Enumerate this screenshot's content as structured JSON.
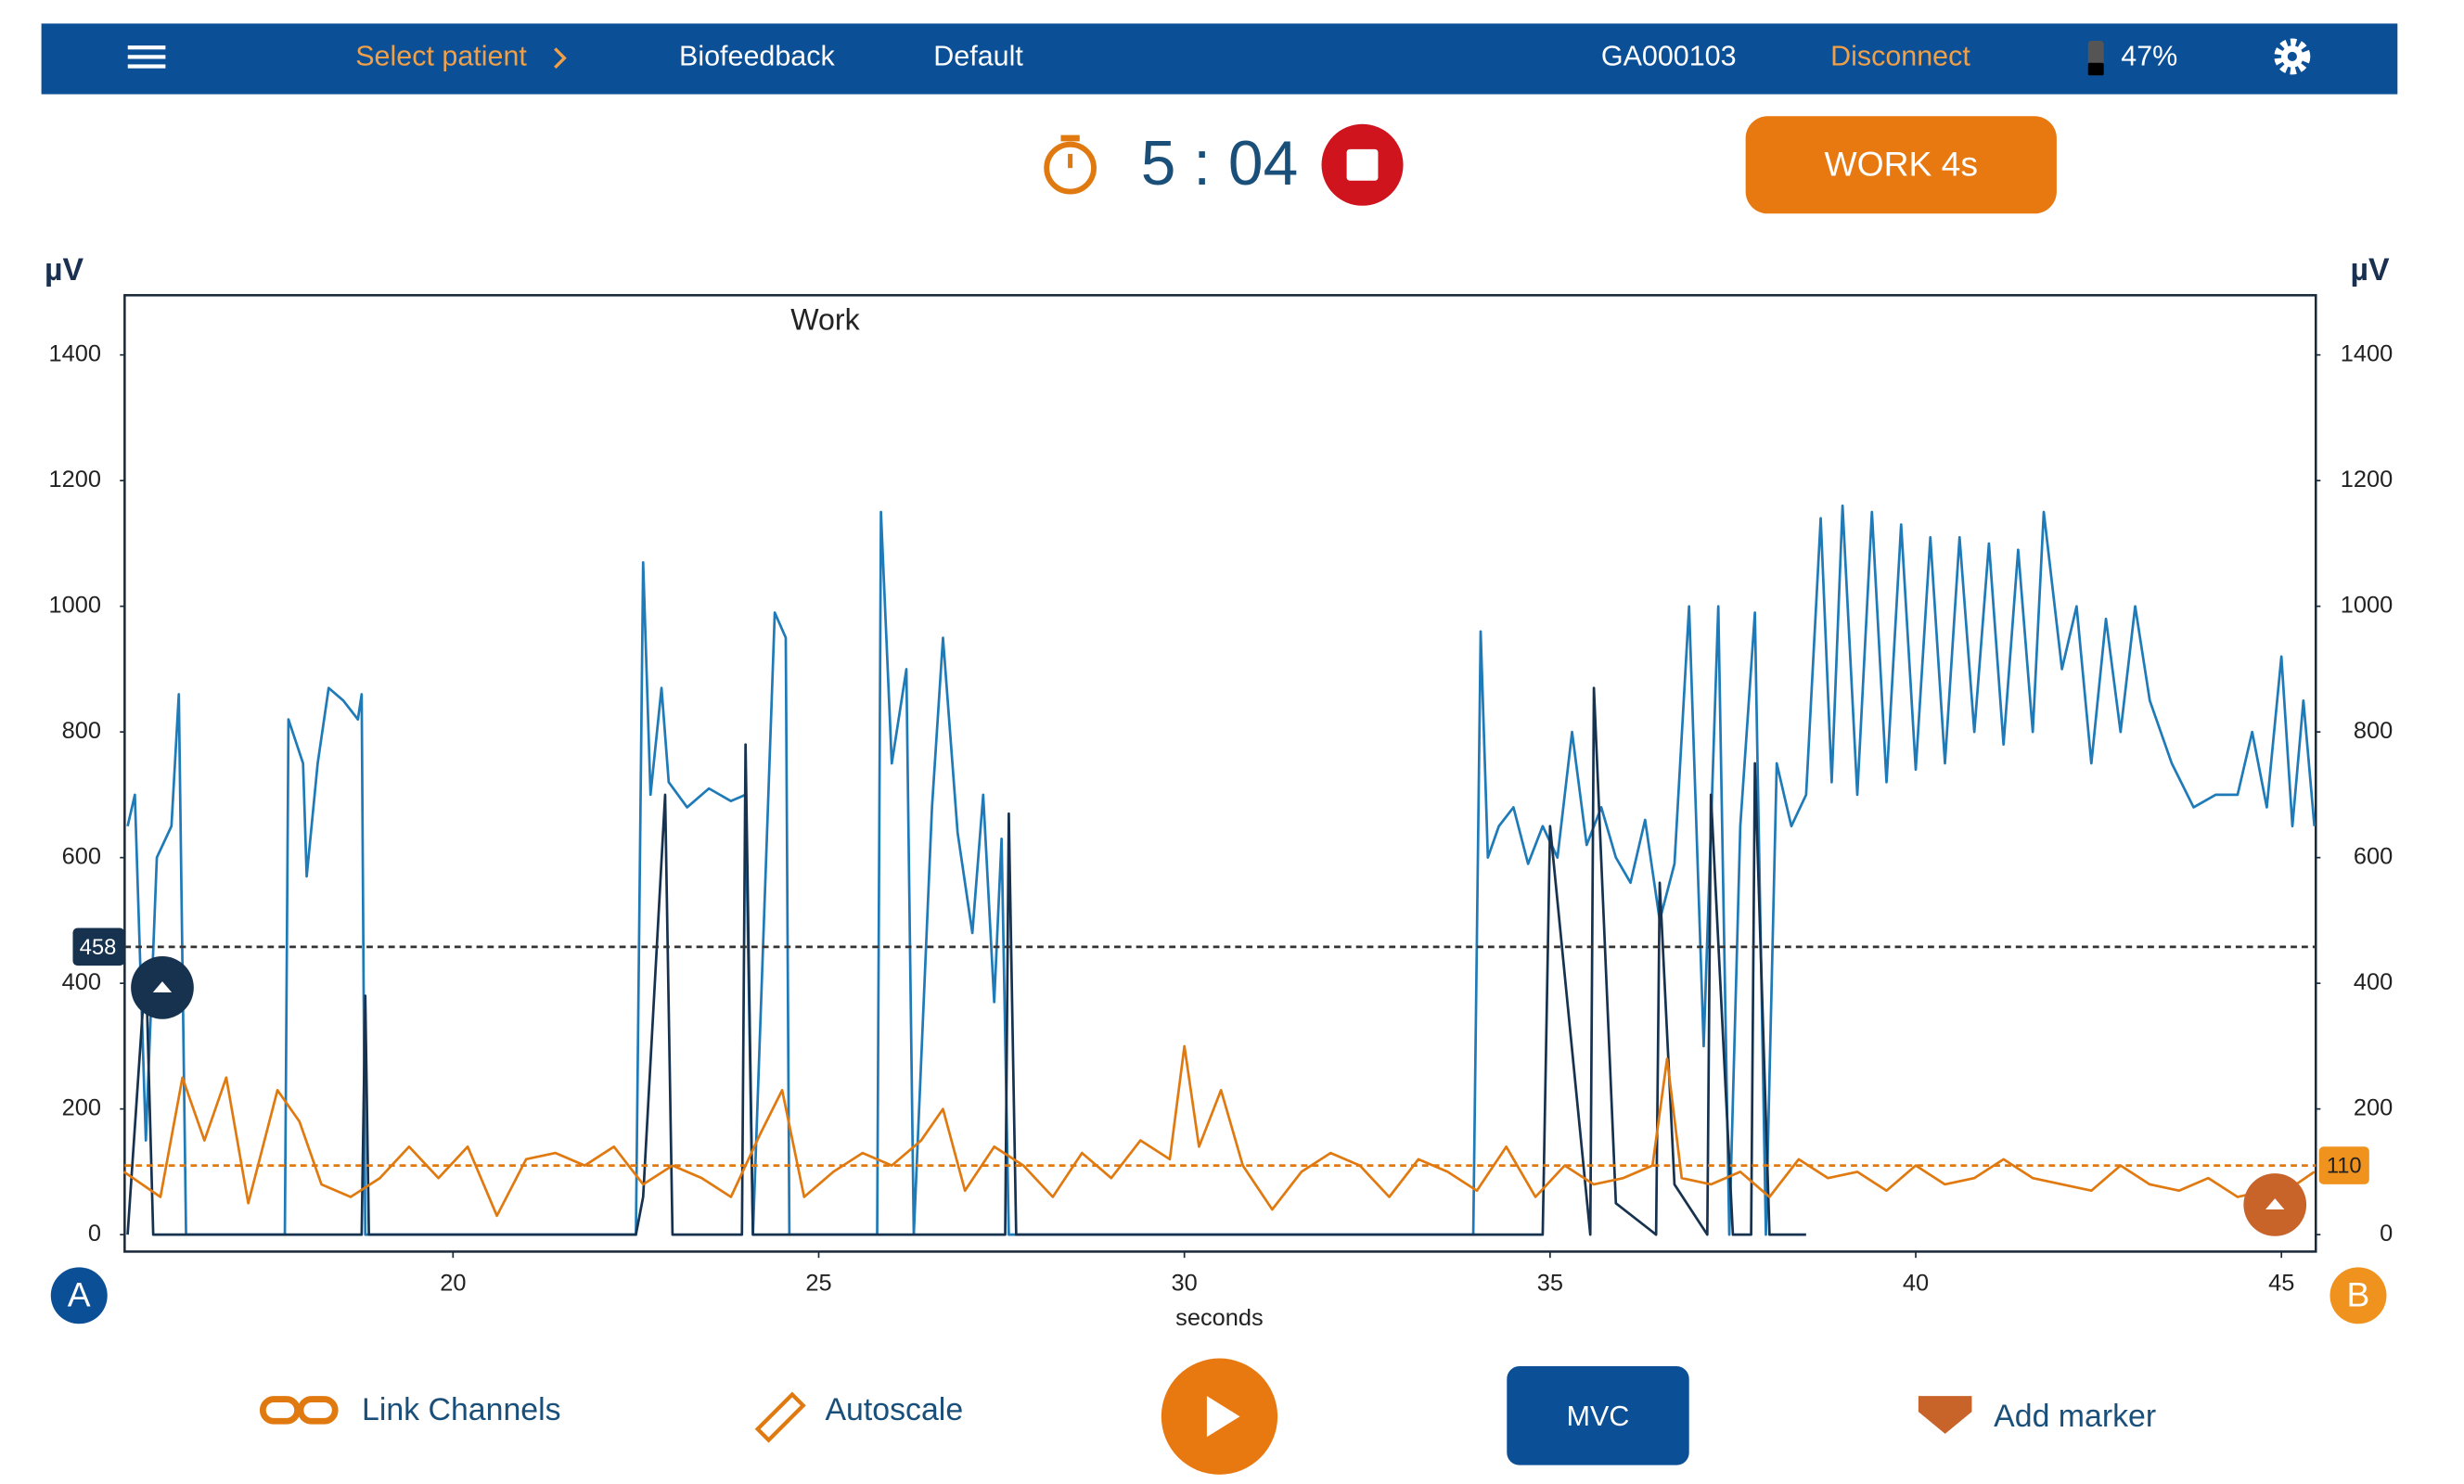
{
  "header": {
    "select_patient": "Select patient",
    "mode": "Biofeedback",
    "protocol": "Default",
    "device": "GA000103",
    "disconnect": "Disconnect",
    "battery": "47%"
  },
  "timer": {
    "time": "5 : 04",
    "phase_button": "WORK 4s"
  },
  "footer": {
    "link_channels": "Link Channels",
    "autoscale": "Autoscale",
    "mvc": "MVC",
    "add_marker": "Add marker"
  },
  "channels": {
    "a": "A",
    "b": "B"
  },
  "chart_data": {
    "type": "line",
    "ylabel": "µV",
    "y2label": "µV",
    "xlabel": "seconds",
    "annotation": "Work",
    "xlim": [
      15.51,
      45.47
    ],
    "xticks": [
      20,
      25,
      30,
      35,
      40,
      45
    ],
    "ylim": [
      -27,
      1495
    ],
    "yticks": [
      0,
      200,
      400,
      600,
      800,
      1000,
      1200,
      1400
    ],
    "y2lim": [
      -27,
      1495
    ],
    "y2ticks": [
      0,
      200,
      400,
      600,
      800,
      1000,
      1200,
      1400
    ],
    "thresholds": [
      {
        "value": 458,
        "color": "#333333"
      },
      {
        "value": 110,
        "color": "#e07a10"
      }
    ],
    "series": [
      {
        "color": "#1f7ab8",
        "x": [
          15.55,
          15.65,
          15.8,
          15.95,
          16.15,
          16.25,
          16.35,
          17.7,
          17.75,
          17.95,
          18.0,
          18.15,
          18.3,
          18.5,
          18.7,
          18.75,
          18.8,
          22.5,
          22.6,
          22.7,
          22.85,
          22.95,
          23.2,
          23.5,
          23.8,
          24.0,
          24.1,
          24.4,
          24.55,
          24.6,
          25.8,
          25.85,
          26.0,
          26.2,
          26.3,
          26.55,
          26.7,
          26.9,
          27.1,
          27.25,
          27.4,
          27.5,
          27.6,
          33.95,
          34.05,
          34.15,
          34.3,
          34.5,
          34.7,
          34.9,
          35.1,
          35.3,
          35.5,
          35.7,
          35.9,
          36.1,
          36.3,
          36.5,
          36.7,
          36.9,
          37.1,
          37.3,
          37.45,
          37.6,
          37.8,
          37.95,
          38.1,
          38.3,
          38.5,
          38.7,
          38.85,
          39.0,
          39.2,
          39.4,
          39.6,
          39.8,
          40.0,
          40.2,
          40.4,
          40.6,
          40.8,
          41.0,
          41.2,
          41.4,
          41.6,
          41.75,
          42.0,
          42.2,
          42.4,
          42.6,
          42.8,
          43.0,
          43.2,
          43.5,
          43.8,
          44.1,
          44.4,
          44.6,
          44.8,
          45.0,
          45.15,
          45.3,
          45.45
        ],
        "values": [
          650,
          700,
          150,
          600,
          650,
          860,
          0,
          0,
          820,
          750,
          570,
          750,
          870,
          850,
          820,
          860,
          0,
          0,
          1070,
          700,
          870,
          720,
          680,
          710,
          690,
          700,
          0,
          990,
          950,
          0,
          0,
          1150,
          750,
          900,
          0,
          680,
          950,
          640,
          480,
          700,
          370,
          630,
          0,
          0,
          960,
          600,
          650,
          680,
          590,
          650,
          600,
          800,
          620,
          680,
          600,
          560,
          660,
          500,
          590,
          1000,
          300,
          1000,
          0,
          650,
          990,
          0,
          750,
          650,
          700,
          1140,
          720,
          1160,
          700,
          1150,
          720,
          1130,
          740,
          1110,
          750,
          1110,
          800,
          1100,
          780,
          1090,
          800,
          1150,
          900,
          1000,
          750,
          980,
          800,
          1000,
          850,
          750,
          680,
          700,
          700,
          800,
          680,
          920,
          650,
          850,
          650
        ]
      },
      {
        "color": "#17324f",
        "x": [
          15.55,
          15.8,
          15.9,
          18.75,
          18.8,
          18.85,
          22.5,
          22.6,
          22.9,
          23.0,
          23.95,
          24.0,
          24.1,
          27.55,
          27.6,
          27.7,
          33.95,
          34.9,
          35.0,
          35.55,
          35.6,
          35.9,
          36.45,
          36.5,
          36.7,
          37.15,
          37.2,
          37.5,
          37.75,
          37.8,
          38.0,
          38.5
        ],
        "values": [
          0,
          430,
          0,
          0,
          380,
          0,
          0,
          60,
          700,
          0,
          0,
          780,
          0,
          0,
          670,
          0,
          0,
          0,
          650,
          0,
          870,
          50,
          0,
          560,
          80,
          0,
          700,
          0,
          0,
          750,
          0,
          0
        ]
      },
      {
        "color": "#e07a10",
        "x": [
          15.5,
          16.0,
          16.3,
          16.6,
          16.9,
          17.2,
          17.6,
          17.9,
          18.2,
          18.6,
          19.0,
          19.4,
          19.8,
          20.2,
          20.6,
          21.0,
          21.4,
          21.8,
          22.2,
          22.6,
          23.0,
          23.4,
          23.8,
          24.2,
          24.5,
          24.8,
          25.2,
          25.6,
          26.0,
          26.4,
          26.7,
          27.0,
          27.4,
          27.8,
          28.2,
          28.6,
          29.0,
          29.4,
          29.8,
          30.0,
          30.2,
          30.5,
          30.8,
          31.2,
          31.6,
          32.0,
          32.4,
          32.8,
          33.2,
          33.6,
          34.0,
          34.4,
          34.8,
          35.2,
          35.6,
          36.0,
          36.4,
          36.6,
          36.8,
          37.2,
          37.6,
          38.0,
          38.4,
          38.8,
          39.2,
          39.6,
          40.0,
          40.4,
          40.8,
          41.2,
          41.6,
          42.0,
          42.4,
          42.8,
          43.2,
          43.6,
          44.0,
          44.4,
          44.8,
          45.2,
          45.45
        ],
        "values": [
          100,
          60,
          250,
          150,
          250,
          50,
          230,
          180,
          80,
          60,
          90,
          140,
          90,
          140,
          30,
          120,
          130,
          110,
          140,
          80,
          110,
          90,
          60,
          160,
          230,
          60,
          100,
          130,
          110,
          150,
          200,
          70,
          140,
          110,
          60,
          130,
          90,
          150,
          120,
          300,
          140,
          230,
          110,
          40,
          100,
          130,
          110,
          60,
          120,
          100,
          70,
          140,
          60,
          110,
          80,
          90,
          110,
          280,
          90,
          80,
          100,
          60,
          120,
          90,
          100,
          70,
          110,
          80,
          90,
          120,
          90,
          80,
          70,
          110,
          80,
          70,
          90,
          60,
          70,
          80,
          100
        ]
      }
    ]
  }
}
